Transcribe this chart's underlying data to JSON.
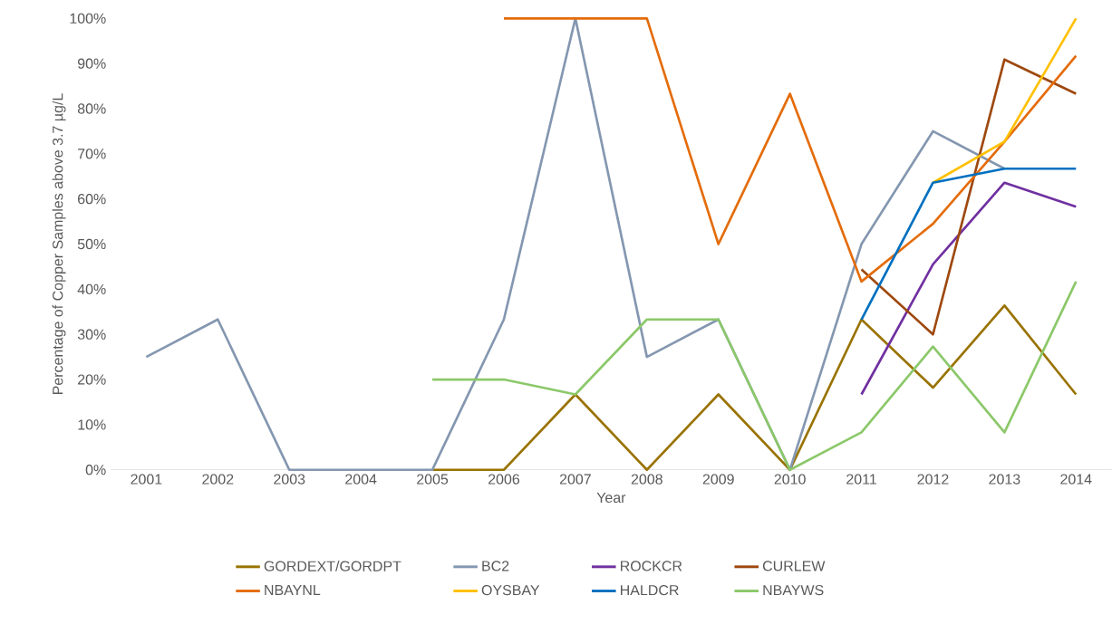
{
  "chart_data": {
    "type": "line",
    "xlabel": "Year",
    "ylabel": "Percentage of Copper Samples above 3.7 µg/L",
    "categories": [
      "2001",
      "2002",
      "2003",
      "2004",
      "2005",
      "2006",
      "2007",
      "2008",
      "2009",
      "2010",
      "2011",
      "2012",
      "2013",
      "2014"
    ],
    "ylim": [
      0,
      100
    ],
    "yticks": [
      {
        "value": 0,
        "label": "0%"
      },
      {
        "value": 10,
        "label": "10%"
      },
      {
        "value": 20,
        "label": "20%"
      },
      {
        "value": 30,
        "label": "30%"
      },
      {
        "value": 40,
        "label": "40%"
      },
      {
        "value": 50,
        "label": "50%"
      },
      {
        "value": 60,
        "label": "60%"
      },
      {
        "value": 70,
        "label": "70%"
      },
      {
        "value": 80,
        "label": "80%"
      },
      {
        "value": 90,
        "label": "90%"
      },
      {
        "value": 100,
        "label": "100%"
      }
    ],
    "grid": false,
    "legend": "bottom",
    "marker": "none",
    "line_style": "solid",
    "series": [
      {
        "name": "GORDEXT/GORDPT",
        "color": "#997300",
        "values": [
          null,
          null,
          null,
          null,
          0,
          0,
          16.7,
          0,
          16.7,
          0,
          33.3,
          18.2,
          36.4,
          16.7
        ]
      },
      {
        "name": "BC2",
        "color": "#8497b0",
        "values": [
          25,
          33.3,
          0,
          0,
          0,
          33.3,
          100,
          25,
          33.3,
          0,
          50,
          75,
          66.7,
          null
        ]
      },
      {
        "name": "ROCKCR",
        "color": "#7030a0",
        "values": [
          null,
          null,
          null,
          null,
          null,
          null,
          null,
          null,
          null,
          null,
          16.7,
          45.5,
          63.6,
          58.3
        ]
      },
      {
        "name": "CURLEW",
        "color": "#9e480e",
        "values": [
          null,
          null,
          null,
          null,
          null,
          null,
          null,
          null,
          null,
          null,
          44.4,
          30,
          90.9,
          83.3
        ]
      },
      {
        "name": "NBAYNL",
        "color": "#e46c0a",
        "values": [
          null,
          null,
          null,
          null,
          null,
          100,
          100,
          100,
          50,
          83.3,
          41.7,
          54.5,
          72.7,
          91.7
        ]
      },
      {
        "name": "OYSBAY",
        "color": "#ffc000",
        "values": [
          null,
          null,
          null,
          null,
          null,
          null,
          null,
          null,
          null,
          null,
          null,
          63.6,
          72.7,
          100
        ]
      },
      {
        "name": "HALDCR",
        "color": "#0070c0",
        "values": [
          null,
          null,
          null,
          null,
          null,
          null,
          null,
          null,
          null,
          null,
          33.3,
          63.6,
          66.7,
          66.7
        ]
      },
      {
        "name": "NBAYWS",
        "color": "#8cc86a",
        "values": [
          null,
          null,
          null,
          null,
          20,
          20,
          16.7,
          33.3,
          33.3,
          0,
          8.3,
          27.3,
          8.3,
          41.7
        ]
      }
    ]
  }
}
